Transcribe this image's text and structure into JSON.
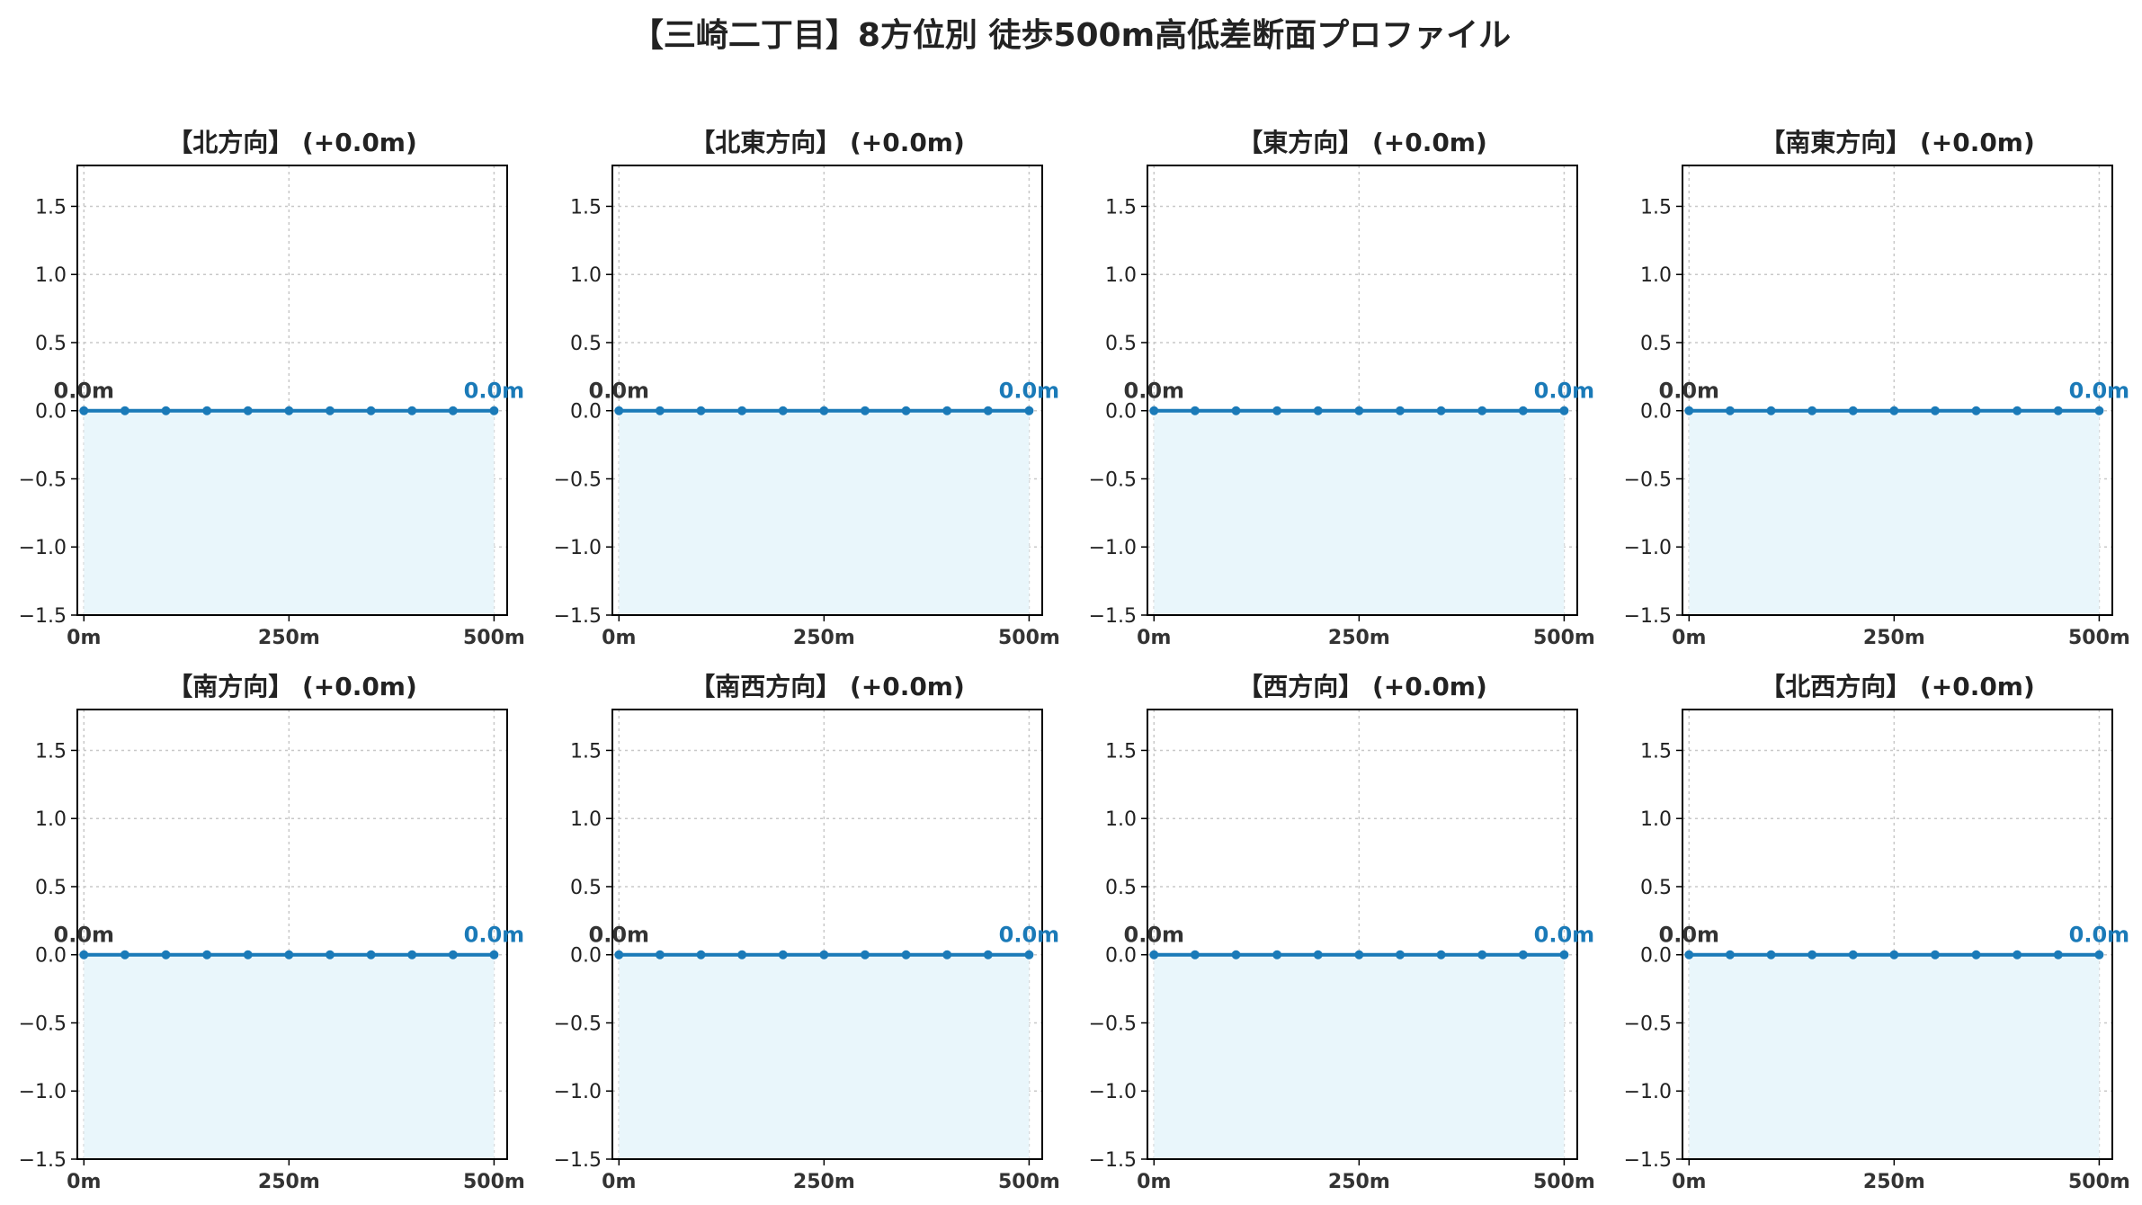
{
  "title": "【三崎二丁目】8方位別 徒歩500m高低差断面プロファイル",
  "colors": {
    "line": "#1a7ab8",
    "fill": "#e9f6fb",
    "grid": "#c8c8c8",
    "start_label": "#333333"
  },
  "chart_data": [
    {
      "type": "area",
      "title": "【北方向】 (+0.0m)",
      "x": [
        0,
        50,
        100,
        150,
        200,
        250,
        300,
        350,
        400,
        450,
        500
      ],
      "y": [
        0,
        0,
        0,
        0,
        0,
        0,
        0,
        0,
        0,
        0,
        0
      ],
      "xticks": [
        "0m",
        "250m",
        "500m"
      ],
      "ylim": [
        -1.5,
        1.8
      ],
      "yticks": [
        "1.5",
        "1.0",
        "0.5",
        "0.0",
        "−0.5",
        "−1.0",
        "−1.5"
      ],
      "start_label": "0.0m",
      "end_label": "0.0m",
      "grid": true
    },
    {
      "type": "area",
      "title": "【北東方向】 (+0.0m)",
      "x": [
        0,
        50,
        100,
        150,
        200,
        250,
        300,
        350,
        400,
        450,
        500
      ],
      "y": [
        0,
        0,
        0,
        0,
        0,
        0,
        0,
        0,
        0,
        0,
        0
      ],
      "xticks": [
        "0m",
        "250m",
        "500m"
      ],
      "ylim": [
        -1.5,
        1.8
      ],
      "yticks": [
        "1.5",
        "1.0",
        "0.5",
        "0.0",
        "−0.5",
        "−1.0",
        "−1.5"
      ],
      "start_label": "0.0m",
      "end_label": "0.0m",
      "grid": true
    },
    {
      "type": "area",
      "title": "【東方向】 (+0.0m)",
      "x": [
        0,
        50,
        100,
        150,
        200,
        250,
        300,
        350,
        400,
        450,
        500
      ],
      "y": [
        0,
        0,
        0,
        0,
        0,
        0,
        0,
        0,
        0,
        0,
        0
      ],
      "xticks": [
        "0m",
        "250m",
        "500m"
      ],
      "ylim": [
        -1.5,
        1.8
      ],
      "yticks": [
        "1.5",
        "1.0",
        "0.5",
        "0.0",
        "−0.5",
        "−1.0",
        "−1.5"
      ],
      "start_label": "0.0m",
      "end_label": "0.0m",
      "grid": true
    },
    {
      "type": "area",
      "title": "【南東方向】 (+0.0m)",
      "x": [
        0,
        50,
        100,
        150,
        200,
        250,
        300,
        350,
        400,
        450,
        500
      ],
      "y": [
        0,
        0,
        0,
        0,
        0,
        0,
        0,
        0,
        0,
        0,
        0
      ],
      "xticks": [
        "0m",
        "250m",
        "500m"
      ],
      "ylim": [
        -1.5,
        1.8
      ],
      "yticks": [
        "1.5",
        "1.0",
        "0.5",
        "0.0",
        "−0.5",
        "−1.0",
        "−1.5"
      ],
      "start_label": "0.0m",
      "end_label": "0.0m",
      "grid": true
    },
    {
      "type": "area",
      "title": "【南方向】 (+0.0m)",
      "x": [
        0,
        50,
        100,
        150,
        200,
        250,
        300,
        350,
        400,
        450,
        500
      ],
      "y": [
        0,
        0,
        0,
        0,
        0,
        0,
        0,
        0,
        0,
        0,
        0
      ],
      "xticks": [
        "0m",
        "250m",
        "500m"
      ],
      "ylim": [
        -1.5,
        1.8
      ],
      "yticks": [
        "1.5",
        "1.0",
        "0.5",
        "0.0",
        "−0.5",
        "−1.0",
        "−1.5"
      ],
      "start_label": "0.0m",
      "end_label": "0.0m",
      "grid": true
    },
    {
      "type": "area",
      "title": "【南西方向】 (+0.0m)",
      "x": [
        0,
        50,
        100,
        150,
        200,
        250,
        300,
        350,
        400,
        450,
        500
      ],
      "y": [
        0,
        0,
        0,
        0,
        0,
        0,
        0,
        0,
        0,
        0,
        0
      ],
      "xticks": [
        "0m",
        "250m",
        "500m"
      ],
      "ylim": [
        -1.5,
        1.8
      ],
      "yticks": [
        "1.5",
        "1.0",
        "0.5",
        "0.0",
        "−0.5",
        "−1.0",
        "−1.5"
      ],
      "start_label": "0.0m",
      "end_label": "0.0m",
      "grid": true
    },
    {
      "type": "area",
      "title": "【西方向】 (+0.0m)",
      "x": [
        0,
        50,
        100,
        150,
        200,
        250,
        300,
        350,
        400,
        450,
        500
      ],
      "y": [
        0,
        0,
        0,
        0,
        0,
        0,
        0,
        0,
        0,
        0,
        0
      ],
      "xticks": [
        "0m",
        "250m",
        "500m"
      ],
      "ylim": [
        -1.5,
        1.8
      ],
      "yticks": [
        "1.5",
        "1.0",
        "0.5",
        "0.0",
        "−0.5",
        "−1.0",
        "−1.5"
      ],
      "start_label": "0.0m",
      "end_label": "0.0m",
      "grid": true
    },
    {
      "type": "area",
      "title": "【北西方向】 (+0.0m)",
      "x": [
        0,
        50,
        100,
        150,
        200,
        250,
        300,
        350,
        400,
        450,
        500
      ],
      "y": [
        0,
        0,
        0,
        0,
        0,
        0,
        0,
        0,
        0,
        0,
        0
      ],
      "xticks": [
        "0m",
        "250m",
        "500m"
      ],
      "ylim": [
        -1.5,
        1.8
      ],
      "yticks": [
        "1.5",
        "1.0",
        "0.5",
        "0.0",
        "−0.5",
        "−1.0",
        "−1.5"
      ],
      "start_label": "0.0m",
      "end_label": "0.0m",
      "grid": true
    }
  ]
}
